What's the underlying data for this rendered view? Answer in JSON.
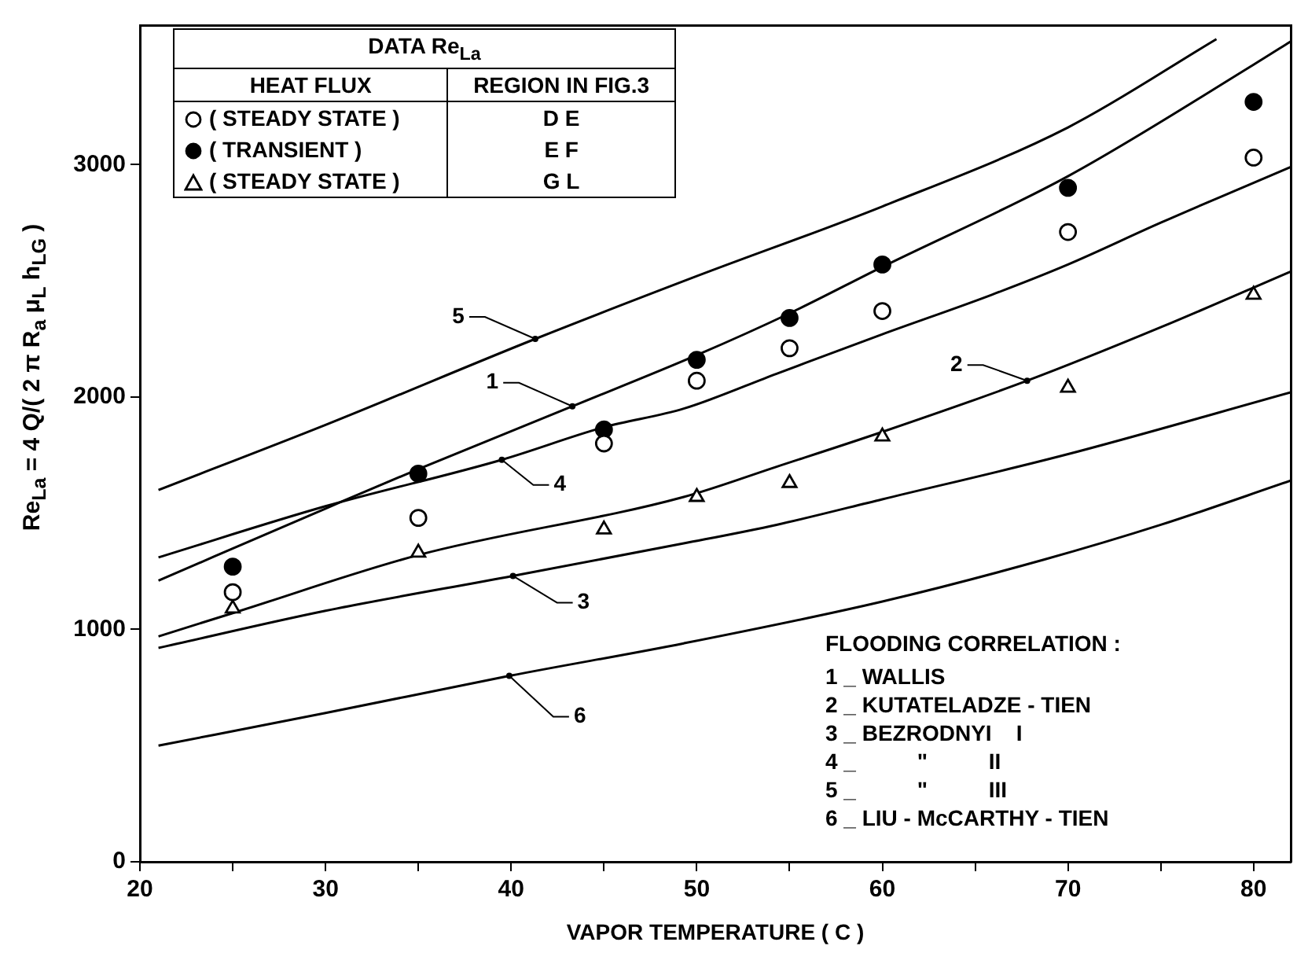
{
  "chart_data": {
    "type": "line",
    "xlabel": "VAPOR TEMPERATURE ( C )",
    "ylabel": "Re$_{La}$ = 4 Q/( 2 π R$_{a}$ μ$_{L}$ h$_{LG}$ )",
    "legend_title": "DATA Re$_{La}$",
    "xlim": [
      20,
      82
    ],
    "ylim": [
      0,
      3600
    ],
    "xticks": [
      20,
      {
        "value": 25,
        "label": null
      },
      30,
      {
        "value": 35,
        "label": null
      },
      40,
      {
        "value": 45,
        "label": null
      },
      50,
      {
        "value": 55,
        "label": null
      },
      60,
      {
        "value": 65,
        "label": null
      },
      70,
      {
        "value": 75,
        "label": null
      },
      80
    ],
    "yticks": [
      0,
      1000,
      2000,
      3000
    ],
    "grid": false,
    "legend": "top left",
    "line_style": "solid",
    "series": [
      {
        "type": "scatter",
        "name": "( STEADY STATE )",
        "marker": "circle",
        "color": "#000000",
        "x": [
          25,
          35,
          45,
          50,
          55,
          60,
          70,
          80
        ],
        "values": [
          1160,
          1480,
          1800,
          2070,
          2210,
          2370,
          2710,
          3030
        ]
      },
      {
        "type": "scatter",
        "name": "( TRANSIENT )",
        "marker": "circle",
        "color": "#000000",
        "colors": [
          "#000000",
          "#000000",
          "#000000",
          "#000000",
          "#000000",
          "#000000",
          "#000000",
          "#000000"
        ],
        "x": [
          25,
          35,
          45,
          50,
          55,
          60,
          70,
          80
        ],
        "values": [
          1270,
          1670,
          1860,
          2160,
          2340,
          2570,
          2900,
          3270
        ]
      },
      {
        "type": "scatter",
        "name": "( STEADY STATE )",
        "marker": "triangle",
        "color": "#000000",
        "x": [
          25,
          35,
          45,
          50,
          55,
          60,
          70,
          80
        ],
        "values": [
          1090,
          1330,
          1430,
          1570,
          1630,
          1830,
          2040,
          2440
        ]
      },
      {
        "marker": "none",
        "color": "#000000",
        "x": [
          21,
          30,
          35,
          43.3,
          50,
          55,
          60,
          70,
          80,
          82
        ],
        "values": [
          1210,
          1520,
          1690,
          1960,
          2180,
          2360,
          2560,
          2950,
          3430,
          3530
        ]
      },
      {
        "marker": "none",
        "color": "#000000",
        "x": [
          21,
          25,
          35,
          49.3,
          54.3,
          60,
          67.8,
          75,
          82
        ],
        "values": [
          970,
          1070,
          1320,
          1570,
          1700,
          1850,
          2070,
          2300,
          2540
        ]
      },
      {
        "marker": "none",
        "color": "#000000",
        "x": [
          21,
          30,
          40.1,
          49.3,
          54.3,
          60,
          69.8,
          82
        ],
        "values": [
          920,
          1080,
          1230,
          1370,
          1450,
          1560,
          1750,
          2020
        ]
      },
      {
        "marker": "none",
        "color": "#000000",
        "x": [
          21,
          30,
          39.5,
          45,
          49.3,
          54.3,
          60,
          65.9,
          70,
          75,
          82
        ],
        "values": [
          1310,
          1530,
          1730,
          1870,
          1950,
          2100,
          2270,
          2440,
          2570,
          2750,
          2990
        ]
      },
      {
        "marker": "none",
        "color": "#000000",
        "x": [
          21,
          30,
          41.3,
          50,
          60,
          70,
          78
        ],
        "values": [
          1600,
          1880,
          2250,
          2520,
          2820,
          3160,
          3540
        ]
      },
      {
        "marker": "none",
        "color": "#000000",
        "x": [
          21,
          30,
          39.9,
          49.3,
          60,
          68.7,
          75,
          82
        ],
        "values": [
          500,
          640,
          800,
          940,
          1120,
          1300,
          1450,
          1640
        ]
      }
    ],
    "annotations": [
      "HEAT FLUX",
      "REGION IN FIG.3",
      "D E",
      "E F",
      "G L",
      "FLOODING CORRELATION :",
      "1 _ WALLIS",
      "2 _ KUTATELADZE - TIEN",
      "3 _ BEZRODNYI    I",
      "4 _          \"          II",
      "5 _          \"          III",
      "6 _ LIU - McCARTHY - TIEN",
      {
        "text": "1",
        "x": 43.3,
        "y": 1960
      },
      {
        "text": "2",
        "x": 67.8,
        "y": 2070
      },
      {
        "text": "3",
        "x": 40.1,
        "y": 1230
      },
      {
        "text": "4",
        "x": 39.5,
        "y": 1730
      },
      {
        "text": "5",
        "x": 41.3,
        "y": 2250
      },
      {
        "text": "6",
        "x": 39.9,
        "y": 800
      }
    ]
  }
}
